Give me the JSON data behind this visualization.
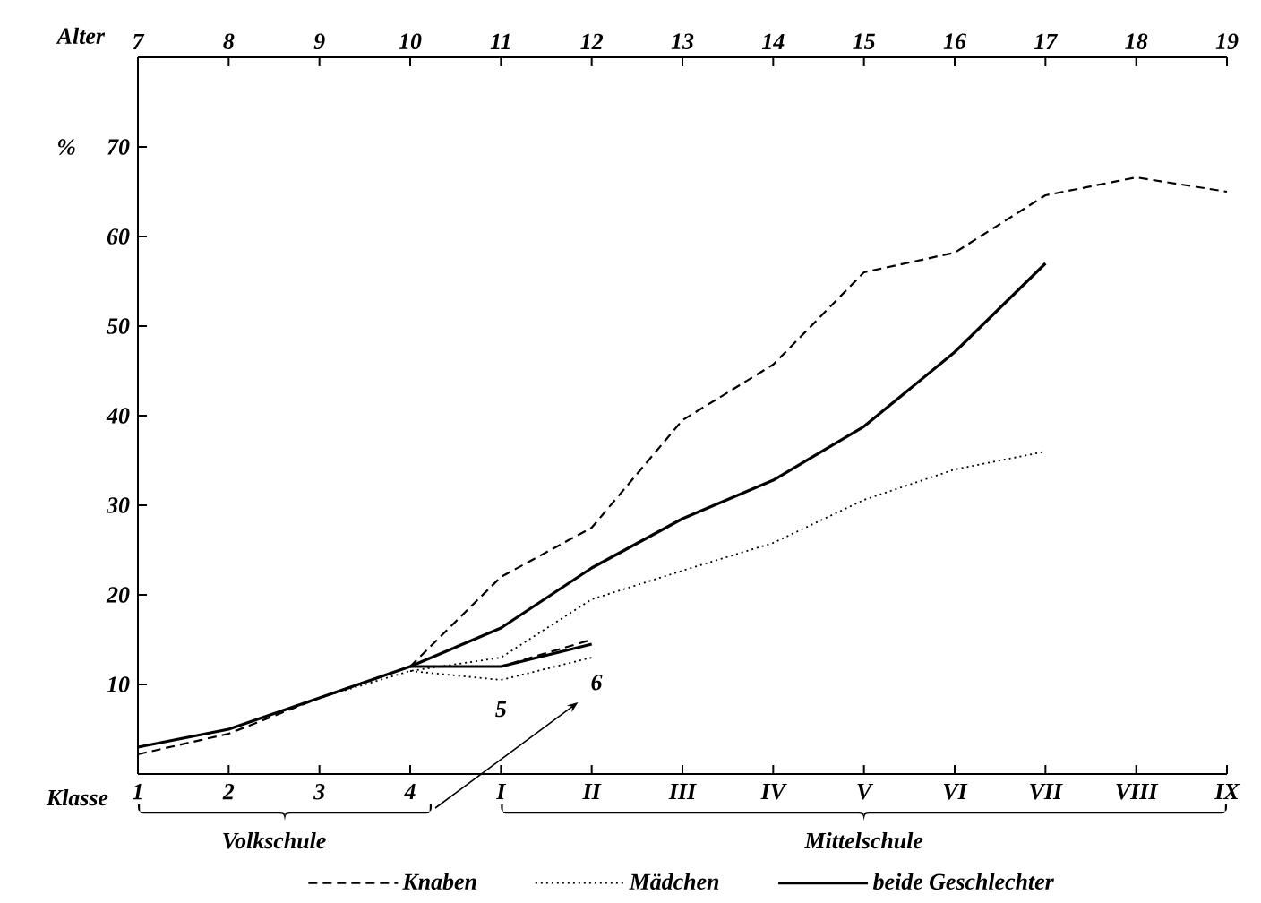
{
  "chart_data": {
    "type": "line",
    "xlabel": "Klasse",
    "ylabel": "%",
    "x2label": "Alter",
    "categories": [
      "1",
      "2",
      "3",
      "4",
      "I",
      "II",
      "III",
      "IV",
      "V",
      "VI",
      "VII",
      "VIII",
      "IX"
    ],
    "x2lim": [
      7,
      19
    ],
    "x2ticks": [
      7,
      8,
      9,
      10,
      11,
      12,
      13,
      14,
      15,
      16,
      17,
      18,
      19
    ],
    "ylim": [
      0,
      80
    ],
    "yticks": [
      10,
      20,
      30,
      40,
      50,
      60,
      70
    ],
    "legend": "bottom",
    "series": [
      {
        "name": "Knaben",
        "color": "#000000",
        "line_style": "dashed",
        "values": [
          2.2,
          4.5,
          8.5,
          12,
          22,
          27.5,
          39.5,
          45.7,
          56,
          58.2,
          64.6,
          66.6,
          65
        ]
      },
      {
        "name": "Mädchen",
        "color": "#000000",
        "line_style": "dotted",
        "values": [
          3,
          5,
          8.5,
          11.5,
          13,
          19.5,
          22.7,
          25.8,
          30.6,
          34,
          36,
          null,
          null
        ]
      },
      {
        "name": "beide Geschlechter",
        "color": "#000000",
        "line_style": "solid",
        "values": [
          3,
          5,
          8.5,
          12,
          16.3,
          23,
          28.5,
          32.8,
          38.8,
          47.1,
          57,
          null,
          null
        ]
      },
      {
        "color": "#000000",
        "line_style": "dashed",
        "values": [
          null,
          null,
          null,
          12,
          12,
          15,
          null,
          null,
          null,
          null,
          null,
          null,
          null
        ]
      },
      {
        "color": "#000000",
        "line_style": "dotted",
        "values": [
          null,
          null,
          null,
          11.5,
          10.5,
          13,
          null,
          null,
          null,
          null,
          null,
          null,
          null
        ]
      },
      {
        "color": "#000000",
        "line_style": "solid",
        "values": [
          null,
          null,
          null,
          12,
          12,
          14.5,
          null,
          null,
          null,
          null,
          null,
          null,
          null
        ]
      }
    ],
    "annotations": [
      "Volkschule",
      "Mittelschule",
      "5",
      "6"
    ]
  }
}
